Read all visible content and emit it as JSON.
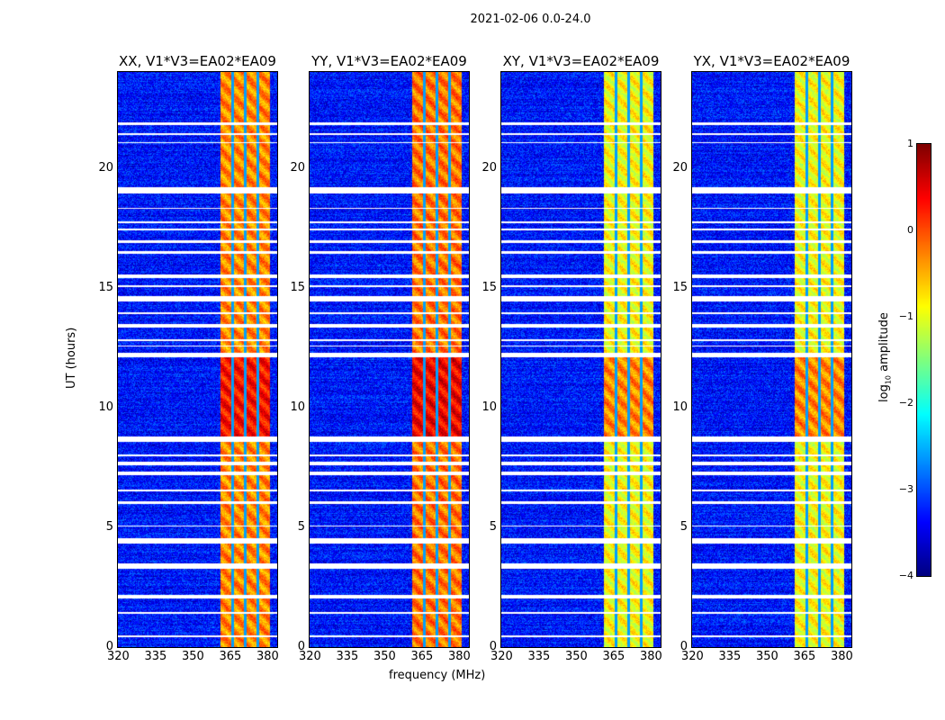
{
  "chart_data": {
    "type": "heatmap",
    "title": "2021-02-06 0.0-24.0",
    "xlabel": "frequency (MHz)",
    "ylabel": "UT (hours)",
    "xlim": [
      320,
      384
    ],
    "ylim": [
      0,
      24
    ],
    "xticks": [
      "320",
      "335",
      "350",
      "365",
      "380"
    ],
    "yticks": [
      "0",
      "5",
      "10",
      "15",
      "20"
    ],
    "panels": [
      {
        "title": "XX, V1*V3=EA02*EA09",
        "band_level": -0.3
      },
      {
        "title": "YY, V1*V3=EA02*EA09",
        "band_level": -0.2
      },
      {
        "title": "XY, V1*V3=EA02*EA09",
        "band_level": -0.9
      },
      {
        "title": "YX, V1*V3=EA02*EA09",
        "band_level": -0.9
      }
    ],
    "background_level": -3.3,
    "bright_band_mhz": [
      361,
      381
    ],
    "bright_band_gaps_mhz": [
      366,
      371,
      376
    ],
    "strong_emission_ut": [
      8.8,
      12.2
    ],
    "flagged_ut_intervals": [
      [
        0.45,
        0.5
      ],
      [
        1.4,
        1.5
      ],
      [
        2.05,
        2.2
      ],
      [
        3.3,
        3.5
      ],
      [
        4.35,
        4.55
      ],
      [
        5.05,
        5.1
      ],
      [
        6.0,
        6.1
      ],
      [
        6.5,
        6.6
      ],
      [
        7.2,
        7.35
      ],
      [
        7.6,
        7.75
      ],
      [
        8.0,
        8.05
      ],
      [
        8.6,
        8.8
      ],
      [
        12.1,
        12.3
      ],
      [
        12.55,
        12.6
      ],
      [
        12.8,
        12.85
      ],
      [
        13.35,
        13.5
      ],
      [
        13.9,
        14.0
      ],
      [
        14.45,
        14.65
      ],
      [
        15.05,
        15.1
      ],
      [
        15.4,
        15.55
      ],
      [
        16.45,
        16.55
      ],
      [
        16.9,
        17.0
      ],
      [
        17.4,
        17.5
      ],
      [
        17.7,
        17.8
      ],
      [
        18.3,
        18.35
      ],
      [
        18.95,
        19.2
      ],
      [
        21.05,
        21.1
      ],
      [
        21.4,
        21.45
      ],
      [
        21.8,
        21.9
      ]
    ],
    "colorbar": {
      "label_prefix": "log",
      "label_sub": "10",
      "label_suffix": " amplitude",
      "ticks": [
        "1",
        "0",
        "−1",
        "−2",
        "−3",
        "−4"
      ],
      "range": [
        -4,
        1
      ]
    }
  }
}
